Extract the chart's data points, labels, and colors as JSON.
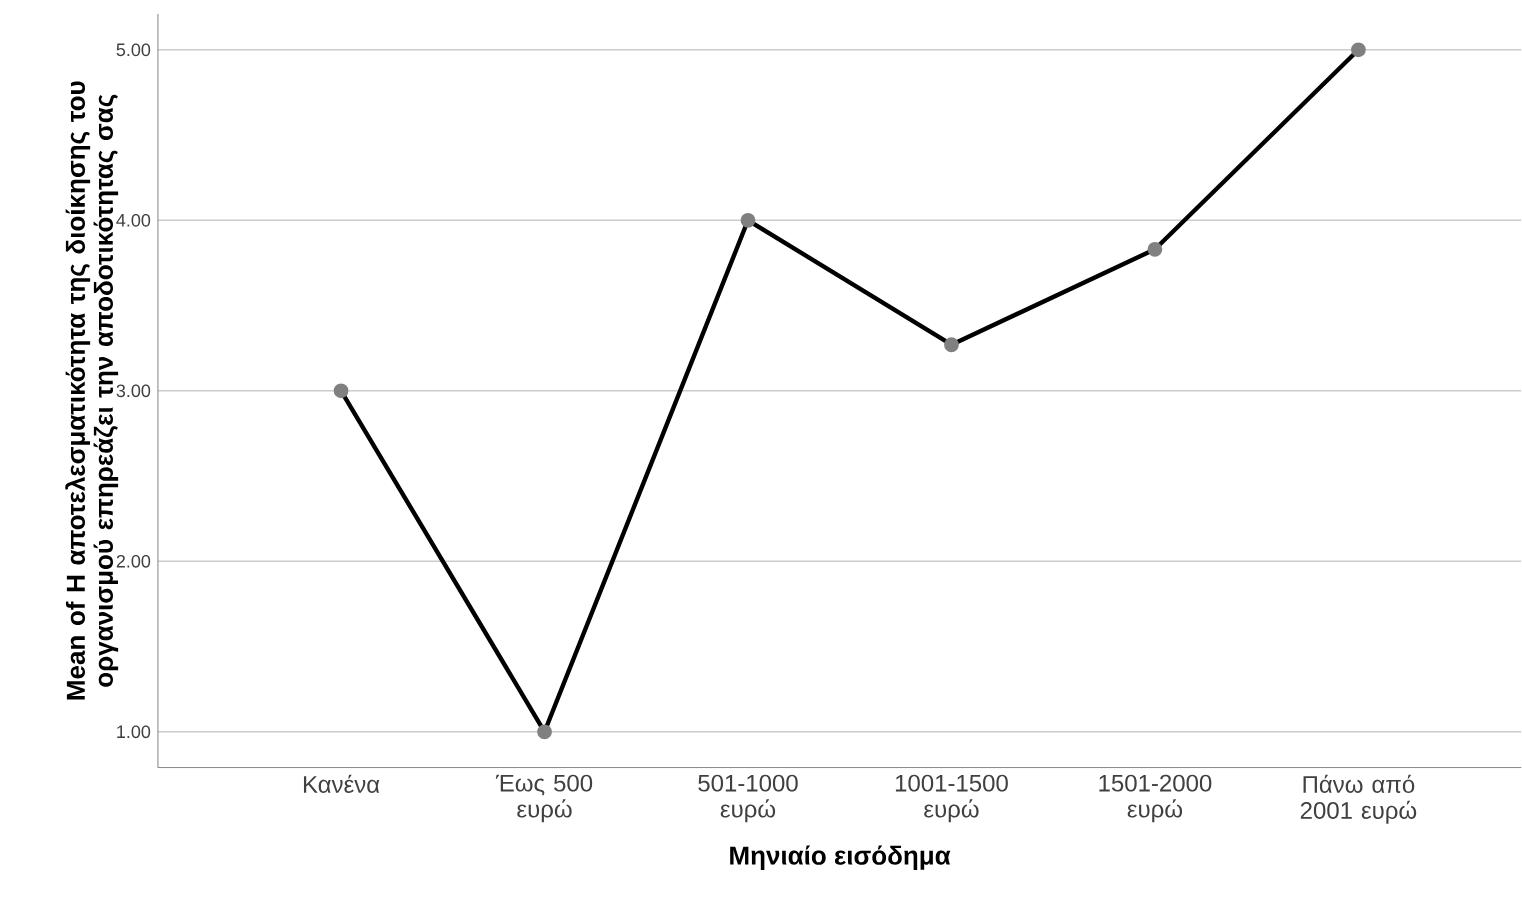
{
  "chart_data": {
    "type": "line",
    "xlabel": "Μηνιαίο εισόδημα",
    "ylabel": "Mean of Η αποτελεσματικότητα της διοίκησης του οργανισμού επηρεάζει την αποδοτικότητας σας",
    "categories": [
      "Κανένα",
      "Έως 500 ευρώ",
      "501-1000 ευρώ",
      "1001-1500 ευρώ",
      "1501-2000 ευρώ",
      "Πάνω από 2001 ευρώ"
    ],
    "series": [
      {
        "color": "#000000",
        "values": [
          3.0,
          1.0,
          4.0,
          3.27,
          3.83,
          5.0
        ]
      }
    ],
    "ylim": [
      0.79,
      5.21
    ],
    "yticks": [
      {
        "value": 1,
        "label": "1.00"
      },
      {
        "value": 2,
        "label": "2.00"
      },
      {
        "value": 3,
        "label": "3.00"
      },
      {
        "value": 4,
        "label": "4.00"
      },
      {
        "value": 5,
        "label": "5.00"
      }
    ],
    "grid": "y",
    "marker": "circle",
    "line_style": "solid"
  }
}
